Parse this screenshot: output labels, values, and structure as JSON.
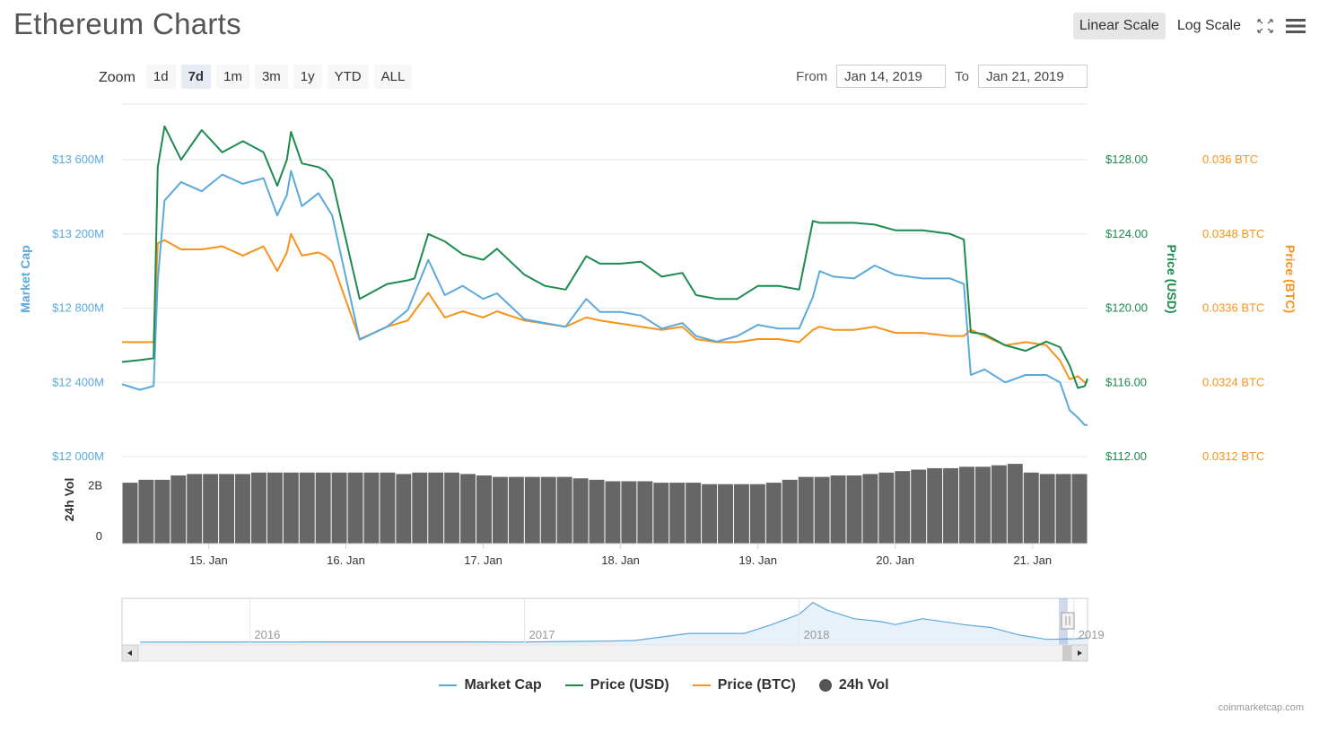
{
  "title": "Ethereum Charts",
  "toolbar": {
    "linear_scale": "Linear Scale",
    "log_scale": "Log Scale"
  },
  "zoom": {
    "label": "Zoom",
    "buttons": [
      "1d",
      "7d",
      "1m",
      "3m",
      "1y",
      "YTD",
      "ALL"
    ],
    "active": "7d"
  },
  "range": {
    "from_label": "From",
    "from_value": "Jan 14, 2019",
    "to_label": "To",
    "to_value": "Jan 21, 2019"
  },
  "colors": {
    "market_cap": "#5aa9dd",
    "price_usd": "#1c8b50",
    "price_btc": "#f7931a",
    "volume": "#666666"
  },
  "legend": {
    "market_cap": "Market Cap",
    "price_usd": "Price (USD)",
    "price_btc": "Price (BTC)",
    "volume": "24h Vol"
  },
  "credit": "coinmarketcap.com",
  "chart_data": {
    "type": "line",
    "axes": {
      "left": {
        "label": "Market Cap",
        "ticks": [
          "$12 000M",
          "$12 400M",
          "$12 800M",
          "$13 200M",
          "$13 600M"
        ],
        "range": [
          12000,
          13900
        ],
        "unit": "M USD"
      },
      "right1": {
        "label": "Price (USD)",
        "ticks": [
          "$112.00",
          "$116.00",
          "$120.00",
          "$124.00",
          "$128.00"
        ],
        "range": [
          112,
          131
        ]
      },
      "right2": {
        "label": "Price (BTC)",
        "ticks": [
          "0.0312 BTC",
          "0.0324 BTC",
          "0.0336 BTC",
          "0.0348 BTC",
          "0.036 BTC"
        ],
        "range": [
          0.0312,
          0.0369
        ]
      },
      "volume": {
        "label": "24h Vol",
        "ticks": [
          "0",
          "2B"
        ],
        "range": [
          0,
          3
        ]
      },
      "x": {
        "ticks": [
          "15. Jan",
          "16. Jan",
          "17. Jan",
          "18. Jan",
          "19. Jan",
          "20. Jan",
          "21. Jan"
        ],
        "range": [
          14.37,
          21.4
        ]
      }
    },
    "x_days": [
      14.37,
      14.5,
      14.6,
      14.63,
      14.68,
      14.8,
      14.95,
      15.1,
      15.25,
      15.4,
      15.5,
      15.57,
      15.6,
      15.68,
      15.8,
      15.85,
      15.9,
      16.1,
      16.3,
      16.45,
      16.5,
      16.6,
      16.72,
      16.85,
      17.0,
      17.1,
      17.3,
      17.45,
      17.6,
      17.75,
      17.85,
      18.0,
      18.15,
      18.3,
      18.45,
      18.55,
      18.7,
      18.85,
      19.0,
      19.15,
      19.3,
      19.4,
      19.45,
      19.55,
      19.7,
      19.85,
      20.0,
      20.2,
      20.4,
      20.5,
      20.55,
      20.65,
      20.8,
      20.95,
      21.1,
      21.2,
      21.27,
      21.33,
      21.38,
      21.4
    ],
    "series": [
      {
        "name": "Market Cap",
        "axis": "left",
        "values": [
          12390,
          12360,
          12380,
          12950,
          13380,
          13480,
          13430,
          13520,
          13470,
          13500,
          13300,
          13410,
          13540,
          13350,
          13420,
          13360,
          13300,
          12630,
          12700,
          12790,
          12880,
          13060,
          12870,
          12920,
          12850,
          12880,
          12740,
          12720,
          12700,
          12850,
          12780,
          12780,
          12760,
          12690,
          12720,
          12650,
          12620,
          12650,
          12710,
          12690,
          12690,
          12860,
          13000,
          12970,
          12960,
          13030,
          12980,
          12960,
          12960,
          12930,
          12440,
          12470,
          12400,
          12440,
          12440,
          12400,
          12250,
          12210,
          12170,
          12170
        ]
      },
      {
        "name": "Price (USD)",
        "axis": "right1",
        "values": [
          117.1,
          117.2,
          117.3,
          127.6,
          129.8,
          128.0,
          129.6,
          128.4,
          129.0,
          128.4,
          126.6,
          128.0,
          129.5,
          127.8,
          127.6,
          127.4,
          126.9,
          120.5,
          121.3,
          121.5,
          121.6,
          124.0,
          123.6,
          122.9,
          122.6,
          123.2,
          121.8,
          121.2,
          121.0,
          122.8,
          122.4,
          122.4,
          122.5,
          121.7,
          121.9,
          120.7,
          120.5,
          120.5,
          121.2,
          121.2,
          121.0,
          124.7,
          124.6,
          124.6,
          124.6,
          124.5,
          124.2,
          124.2,
          124.0,
          123.7,
          118.7,
          118.6,
          118.0,
          117.7,
          118.2,
          117.9,
          116.9,
          115.7,
          115.8,
          116.2
        ]
      },
      {
        "name": "Price (BTC)",
        "axis": "right2",
        "values": [
          0.03305,
          0.03305,
          0.03305,
          0.03465,
          0.0347,
          0.03455,
          0.03455,
          0.0346,
          0.03445,
          0.0346,
          0.0342,
          0.0345,
          0.0348,
          0.03445,
          0.0345,
          0.03445,
          0.03435,
          0.0331,
          0.0333,
          0.0334,
          0.03355,
          0.03385,
          0.03345,
          0.03355,
          0.03345,
          0.03355,
          0.0334,
          0.03335,
          0.0333,
          0.03345,
          0.0334,
          0.03335,
          0.0333,
          0.03325,
          0.0333,
          0.0331,
          0.03305,
          0.03305,
          0.0331,
          0.0331,
          0.03305,
          0.03325,
          0.0333,
          0.03325,
          0.03325,
          0.0333,
          0.0332,
          0.0332,
          0.03315,
          0.03315,
          0.03325,
          0.03315,
          0.033,
          0.03305,
          0.033,
          0.03275,
          0.03245,
          0.0325,
          0.0324,
          0.0324
        ]
      },
      {
        "name": "24h Vol",
        "axis": "volume",
        "type": "bar",
        "values": [
          2.1,
          2.2,
          2.2,
          2.35,
          2.4,
          2.4,
          2.4,
          2.4,
          2.45,
          2.45,
          2.45,
          2.45,
          2.45,
          2.45,
          2.45,
          2.45,
          2.45,
          2.4,
          2.45,
          2.45,
          2.45,
          2.4,
          2.35,
          2.3,
          2.3,
          2.3,
          2.3,
          2.3,
          2.25,
          2.2,
          2.15,
          2.15,
          2.15,
          2.1,
          2.1,
          2.1,
          2.05,
          2.05,
          2.05,
          2.05,
          2.1,
          2.2,
          2.3,
          2.3,
          2.35,
          2.35,
          2.4,
          2.45,
          2.5,
          2.55,
          2.6,
          2.6,
          2.65,
          2.65,
          2.7,
          2.75,
          2.45,
          2.4,
          2.4,
          2.4
        ]
      }
    ],
    "navigator": {
      "ticks": [
        "2016",
        "2017",
        "2018",
        "2019"
      ],
      "x_years": [
        2015.6,
        2016.0,
        2016.5,
        2017.0,
        2017.3,
        2017.4,
        2017.6,
        2017.8,
        2017.9,
        2018.0,
        2018.05,
        2018.1,
        2018.2,
        2018.3,
        2018.35,
        2018.45,
        2018.6,
        2018.7,
        2018.8,
        2018.9,
        2019.0,
        2019.05
      ],
      "values": [
        0.5,
        1.0,
        1.3,
        1.0,
        4,
        6,
        30,
        30,
        60,
        95,
        135,
        110,
        80,
        70,
        60,
        80,
        60,
        50,
        25,
        10,
        12,
        14
      ]
    }
  }
}
